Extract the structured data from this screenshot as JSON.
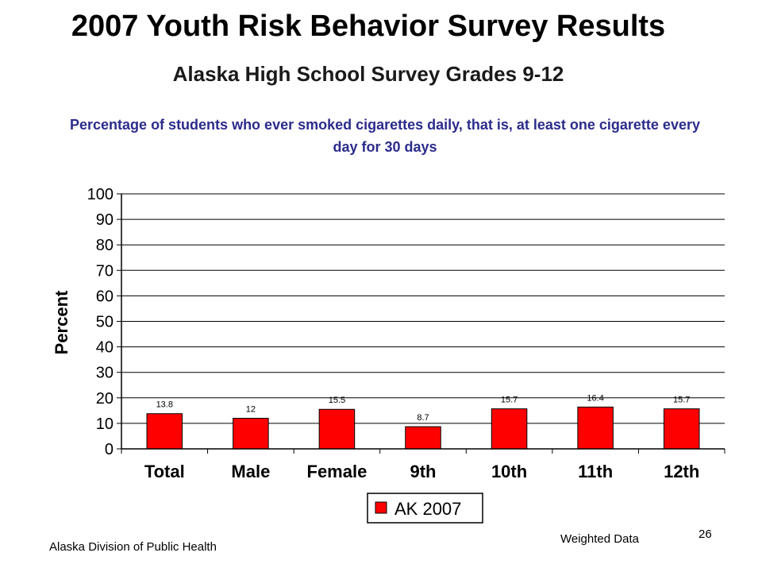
{
  "slide": {
    "title": "2007 Youth Risk Behavior Survey Results",
    "subtitle": "Alaska High School Survey Grades 9-12",
    "footer_left": "Alaska Division of Public Health",
    "footer_right": "Weighted Data",
    "page_number": "26"
  },
  "colors": {
    "bar": "#ff0000",
    "bar_outline": "#000000",
    "gridline": "#000000",
    "title_blue": "#2b2b8c"
  },
  "chart_data": {
    "type": "bar",
    "title": "Percentage of students who ever smoked cigarettes daily, that is, at least one cigarette every day for 30 days",
    "ylabel": "Percent",
    "xlabel": "",
    "categories": [
      "Total",
      "Male",
      "Female",
      "9th",
      "10th",
      "11th",
      "12th"
    ],
    "series": [
      {
        "name": "AK 2007",
        "values": [
          13.8,
          12,
          15.5,
          8.7,
          15.7,
          16.4,
          15.7
        ]
      }
    ],
    "data_labels": [
      "13.8",
      "12",
      "15.5",
      "8.7",
      "15.7",
      "16.4",
      "15.7"
    ],
    "ylim": [
      0,
      100
    ],
    "yticks": [
      0,
      10,
      20,
      30,
      40,
      50,
      60,
      70,
      80,
      90,
      100
    ],
    "grid": true,
    "legend_position": "bottom"
  }
}
